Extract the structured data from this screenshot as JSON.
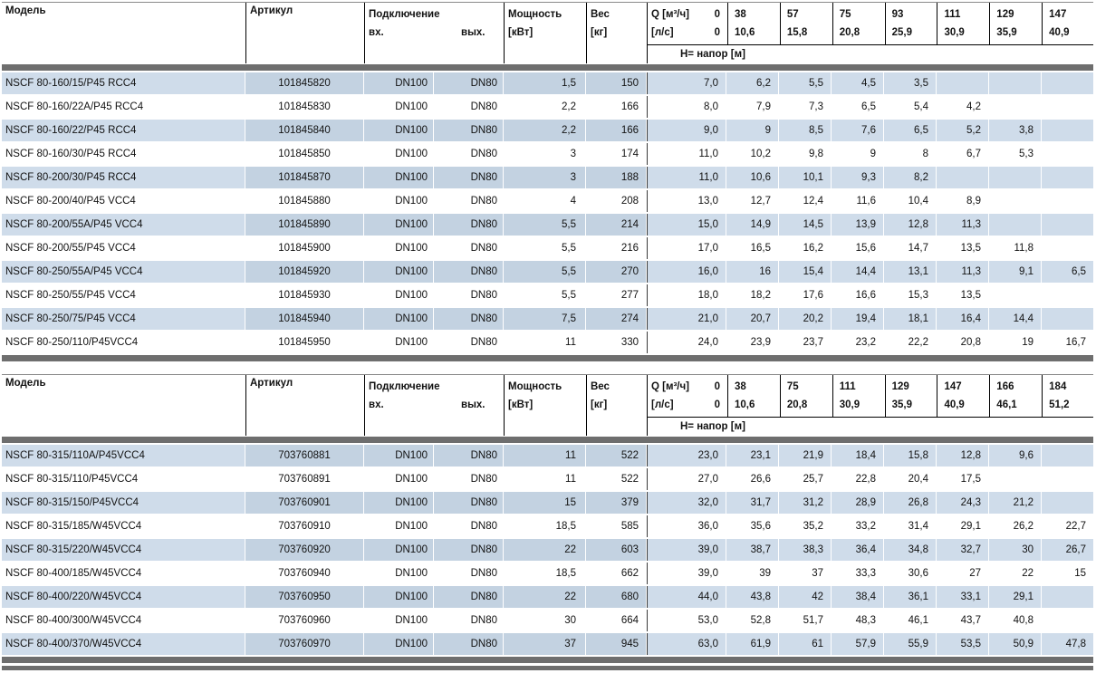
{
  "colors": {
    "row_blue_light": "#cfdcea",
    "row_blue_mid": "#c3d2e1",
    "separator_gray": "#6e6e6e",
    "line_black": "#000000"
  },
  "tables": [
    {
      "headers": {
        "model": "Модель",
        "article": "Артикул",
        "connection": "Подключение",
        "inlet": "вх.",
        "outlet": "вых.",
        "power_line1": "Мощность",
        "power_line2": "[кВт]",
        "weight_line1": "Вес",
        "weight_line2": "[кг]",
        "q_label_m3h": "Q [м³/ч]",
        "q_zero_m3h": "0",
        "q_label_ls": "[л/с]",
        "q_zero_ls": "0",
        "head_label": "H= напор [м]"
      },
      "q_columns": [
        {
          "m3h": "38",
          "ls": "10,6"
        },
        {
          "m3h": "57",
          "ls": "15,8"
        },
        {
          "m3h": "75",
          "ls": "20,8"
        },
        {
          "m3h": "93",
          "ls": "25,9"
        },
        {
          "m3h": "111",
          "ls": "30,9"
        },
        {
          "m3h": "129",
          "ls": "35,9"
        },
        {
          "m3h": "147",
          "ls": "40,9"
        }
      ],
      "rows": [
        {
          "model": "NSCF 80-160/15/P45 RCC4",
          "article": "101845820",
          "inlet": "DN100",
          "outlet": "DN80",
          "power": "1,5",
          "weight": "150",
          "values": [
            "7,0",
            "6,2",
            "5,5",
            "4,5",
            "3,5",
            "",
            "",
            ""
          ]
        },
        {
          "model": "NSCF 80-160/22A/P45 RCC4",
          "article": "101845830",
          "inlet": "DN100",
          "outlet": "DN80",
          "power": "2,2",
          "weight": "166",
          "values": [
            "8,0",
            "7,9",
            "7,3",
            "6,5",
            "5,4",
            "4,2",
            "",
            ""
          ]
        },
        {
          "model": "NSCF 80-160/22/P45 RCC4",
          "article": "101845840",
          "inlet": "DN100",
          "outlet": "DN80",
          "power": "2,2",
          "weight": "166",
          "values": [
            "9,0",
            "9",
            "8,5",
            "7,6",
            "6,5",
            "5,2",
            "3,8",
            ""
          ]
        },
        {
          "model": "NSCF 80-160/30/P45 RCC4",
          "article": "101845850",
          "inlet": "DN100",
          "outlet": "DN80",
          "power": "3",
          "weight": "174",
          "values": [
            "11,0",
            "10,2",
            "9,8",
            "9",
            "8",
            "6,7",
            "5,3",
            ""
          ]
        },
        {
          "model": "NSCF 80-200/30/P45 RCC4",
          "article": "101845870",
          "inlet": "DN100",
          "outlet": "DN80",
          "power": "3",
          "weight": "188",
          "values": [
            "11,0",
            "10,6",
            "10,1",
            "9,3",
            "8,2",
            "",
            "",
            ""
          ]
        },
        {
          "model": "NSCF 80-200/40/P45 VCC4",
          "article": "101845880",
          "inlet": "DN100",
          "outlet": "DN80",
          "power": "4",
          "weight": "208",
          "values": [
            "13,0",
            "12,7",
            "12,4",
            "11,6",
            "10,4",
            "8,9",
            "",
            ""
          ]
        },
        {
          "model": "NSCF 80-200/55A/P45 VCC4",
          "article": "101845890",
          "inlet": "DN100",
          "outlet": "DN80",
          "power": "5,5",
          "weight": "214",
          "values": [
            "15,0",
            "14,9",
            "14,5",
            "13,9",
            "12,8",
            "11,3",
            "",
            ""
          ]
        },
        {
          "model": "NSCF 80-200/55/P45 VCC4",
          "article": "101845900",
          "inlet": "DN100",
          "outlet": "DN80",
          "power": "5,5",
          "weight": "216",
          "values": [
            "17,0",
            "16,5",
            "16,2",
            "15,6",
            "14,7",
            "13,5",
            "11,8",
            ""
          ]
        },
        {
          "model": "NSCF 80-250/55A/P45 VCC4",
          "article": "101845920",
          "inlet": "DN100",
          "outlet": "DN80",
          "power": "5,5",
          "weight": "270",
          "values": [
            "16,0",
            "16",
            "15,4",
            "14,4",
            "13,1",
            "11,3",
            "9,1",
            "6,5"
          ]
        },
        {
          "model": "NSCF 80-250/55/P45 VCC4",
          "article": "101845930",
          "inlet": "DN100",
          "outlet": "DN80",
          "power": "5,5",
          "weight": "277",
          "values": [
            "18,0",
            "18,2",
            "17,6",
            "16,6",
            "15,3",
            "13,5",
            "",
            ""
          ]
        },
        {
          "model": "NSCF 80-250/75/P45 VCC4",
          "article": "101845940",
          "inlet": "DN100",
          "outlet": "DN80",
          "power": "7,5",
          "weight": "274",
          "values": [
            "21,0",
            "20,7",
            "20,2",
            "19,4",
            "18,1",
            "16,4",
            "14,4",
            ""
          ]
        },
        {
          "model": "NSCF 80-250/110/P45VCC4",
          "article": "101845950",
          "inlet": "DN100",
          "outlet": "DN80",
          "power": "11",
          "weight": "330",
          "values": [
            "24,0",
            "23,9",
            "23,7",
            "23,2",
            "22,2",
            "20,8",
            "19",
            "16,7"
          ]
        }
      ]
    },
    {
      "headers": {
        "model": "Модель",
        "article": "Артикул",
        "connection": "Подключение",
        "inlet": "вх.",
        "outlet": "вых.",
        "power_line1": "Мощность",
        "power_line2": "[кВт]",
        "weight_line1": "Вес",
        "weight_line2": "[кг]",
        "q_label_m3h": "Q [м³/ч]",
        "q_zero_m3h": "0",
        "q_label_ls": "[л/с]",
        "q_zero_ls": "0",
        "head_label": "H= напор [м]"
      },
      "q_columns": [
        {
          "m3h": "38",
          "ls": "10,6"
        },
        {
          "m3h": "75",
          "ls": "20,8"
        },
        {
          "m3h": "111",
          "ls": "30,9"
        },
        {
          "m3h": "129",
          "ls": "35,9"
        },
        {
          "m3h": "147",
          "ls": "40,9"
        },
        {
          "m3h": "166",
          "ls": "46,1"
        },
        {
          "m3h": "184",
          "ls": "51,2"
        }
      ],
      "rows": [
        {
          "model": "NSCF 80-315/110A/P45VCC4",
          "article": "703760881",
          "inlet": "DN100",
          "outlet": "DN80",
          "power": "11",
          "weight": "522",
          "values": [
            "23,0",
            "23,1",
            "21,9",
            "18,4",
            "15,8",
            "12,8",
            "9,6",
            ""
          ]
        },
        {
          "model": "NSCF 80-315/110/P45VCC4",
          "article": "703760891",
          "inlet": "DN100",
          "outlet": "DN80",
          "power": "11",
          "weight": "522",
          "values": [
            "27,0",
            "26,6",
            "25,7",
            "22,8",
            "20,4",
            "17,5",
            "",
            ""
          ]
        },
        {
          "model": "NSCF 80-315/150/P45VCC4",
          "article": "703760901",
          "inlet": "DN100",
          "outlet": "DN80",
          "power": "15",
          "weight": "379",
          "values": [
            "32,0",
            "31,7",
            "31,2",
            "28,9",
            "26,8",
            "24,3",
            "21,2",
            ""
          ]
        },
        {
          "model": "NSCF 80-315/185/W45VCC4",
          "article": "703760910",
          "inlet": "DN100",
          "outlet": "DN80",
          "power": "18,5",
          "weight": "585",
          "values": [
            "36,0",
            "35,6",
            "35,2",
            "33,2",
            "31,4",
            "29,1",
            "26,2",
            "22,7"
          ]
        },
        {
          "model": "NSCF 80-315/220/W45VCC4",
          "article": "703760920",
          "inlet": "DN100",
          "outlet": "DN80",
          "power": "22",
          "weight": "603",
          "values": [
            "39,0",
            "38,7",
            "38,3",
            "36,4",
            "34,8",
            "32,7",
            "30",
            "26,7"
          ]
        },
        {
          "model": "NSCF 80-400/185/W45VCC4",
          "article": "703760940",
          "inlet": "DN100",
          "outlet": "DN80",
          "power": "18,5",
          "weight": "662",
          "values": [
            "39,0",
            "39",
            "37",
            "33,3",
            "30,6",
            "27",
            "22",
            "15"
          ]
        },
        {
          "model": "NSCF 80-400/220/W45VCC4",
          "article": "703760950",
          "inlet": "DN100",
          "outlet": "DN80",
          "power": "22",
          "weight": "680",
          "values": [
            "44,0",
            "43,8",
            "42",
            "38,4",
            "36,1",
            "33,1",
            "29,1",
            ""
          ]
        },
        {
          "model": "NSCF 80-400/300/W45VCC4",
          "article": "703760960",
          "inlet": "DN100",
          "outlet": "DN80",
          "power": "30",
          "weight": "664",
          "values": [
            "53,0",
            "52,8",
            "51,7",
            "48,3",
            "46,1",
            "43,7",
            "40,8",
            ""
          ]
        },
        {
          "model": "NSCF 80-400/370/W45VCC4",
          "article": "703760970",
          "inlet": "DN100",
          "outlet": "DN80",
          "power": "37",
          "weight": "945",
          "values": [
            "63,0",
            "61,9",
            "61",
            "57,9",
            "55,9",
            "53,5",
            "50,9",
            "47,8"
          ]
        }
      ]
    }
  ]
}
